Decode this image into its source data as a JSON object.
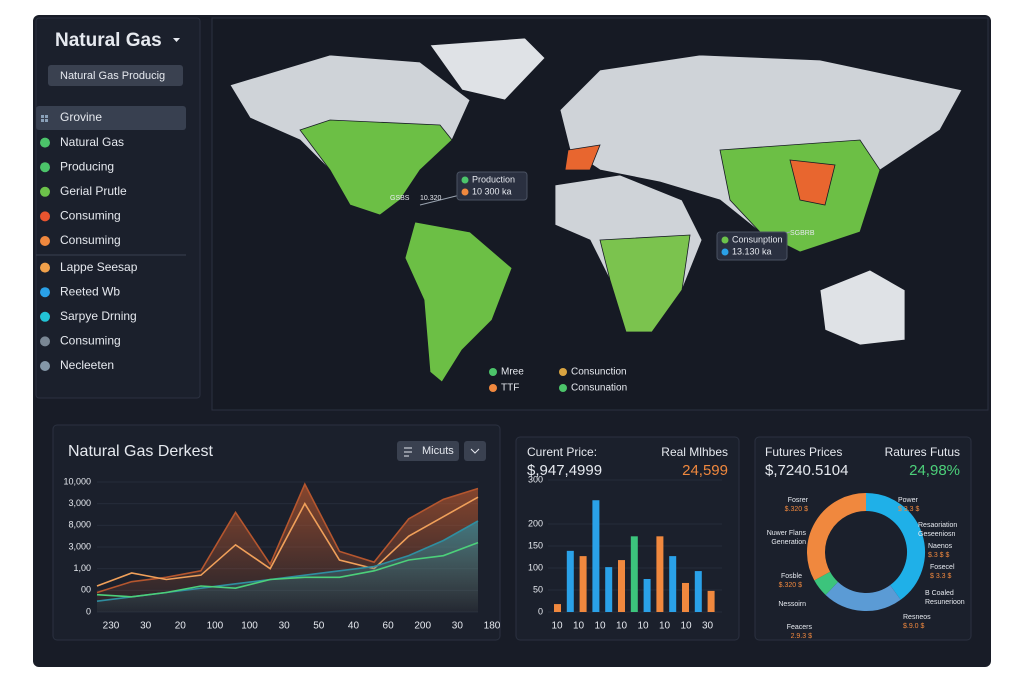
{
  "sidebar": {
    "title": "Natural Gas",
    "dropdown": "Natural Gas Producig",
    "items": [
      {
        "label": "Grovine",
        "color": "#8aa0b8"
      },
      {
        "label": "Natural Gas",
        "color": "#4cc46a"
      },
      {
        "label": "Producing",
        "color": "#4cc46a"
      },
      {
        "label": "Gerial Prutle",
        "color": "#6cc24a"
      },
      {
        "label": "Consuming",
        "color": "#e8542f"
      },
      {
        "label": "Consuming",
        "color": "#f0883e"
      },
      {
        "label": "Lappe Seesap",
        "color": "#f0a04a"
      },
      {
        "label": "Reeted Wb",
        "color": "#2aa1e8"
      },
      {
        "label": "Sarpye Drning",
        "color": "#22c3d6"
      },
      {
        "label": "Consuming",
        "color": "#7a8794"
      },
      {
        "label": "Necleeten",
        "color": "#8497a8"
      }
    ]
  },
  "map": {
    "callouts": [
      [
        {
          "text": "Production",
          "color": "#4cc46a"
        },
        {
          "text": "10 300 ka",
          "color": "#f0883e"
        }
      ],
      [
        {
          "text": "Consunption",
          "color": "#6cc24a"
        },
        {
          "text": "13.130 ka",
          "color": "#2aa1e8"
        }
      ]
    ],
    "labels": [
      "GSBS",
      "10.320",
      "SGBRB"
    ],
    "legend": [
      {
        "text": "Mree",
        "color": "#4cc46a"
      },
      {
        "text": "TTF",
        "color": "#f0883e"
      },
      {
        "text": "Consunction",
        "color": "#d9a441"
      },
      {
        "text": "Consunation",
        "color": "#4cc46a"
      }
    ]
  },
  "market": {
    "title": "Natural Gas Derkest",
    "button": "Micuts",
    "ylim": [
      0,
      6
    ],
    "yticks": [
      0,
      {
        "value": 1,
        "label": "00"
      },
      {
        "value": 2,
        "label": "1,00"
      },
      {
        "value": 3,
        "label": "3,000"
      },
      {
        "value": 4,
        "label": "8,000"
      },
      {
        "value": 5,
        "label": "3,000"
      },
      {
        "value": 6,
        "label": "10,000"
      }
    ],
    "categories": [
      "230",
      "30",
      "20",
      "100",
      "100",
      "30",
      "50",
      "40",
      "60",
      "200",
      "30",
      "180"
    ],
    "series": [
      {
        "color": "#b5562e",
        "values": [
          0.9,
          1.4,
          1.6,
          1.9,
          4.6,
          2.2,
          5.9,
          2.8,
          2.3,
          4.3,
          5.2,
          5.7
        ]
      },
      {
        "color": "#f0a05a",
        "values": [
          1.2,
          1.8,
          1.5,
          1.7,
          3.1,
          2.0,
          5.0,
          2.4,
          2.0,
          3.5,
          4.4,
          5.3
        ]
      },
      {
        "color": "#2f8ea0",
        "values": [
          0.5,
          0.7,
          0.9,
          1.1,
          1.3,
          1.5,
          1.7,
          1.9,
          2.1,
          2.6,
          3.3,
          4.2
        ]
      },
      {
        "color": "#4cd07a",
        "values": [
          0.8,
          0.7,
          0.9,
          1.2,
          1.1,
          1.5,
          1.6,
          1.6,
          1.9,
          2.4,
          2.6,
          3.2
        ]
      }
    ]
  },
  "price": {
    "label": "Curent Price:",
    "value": "$,947,4999",
    "label2": "Real Mlhbes",
    "value2": "24,599",
    "ylim": [
      0,
      300
    ],
    "yticks": [
      0,
      50,
      100,
      150,
      200,
      300
    ],
    "categories": [
      "10",
      "10",
      "10",
      "10",
      "10",
      "10",
      "10",
      "30"
    ],
    "bars": [
      {
        "value": 18,
        "color": "#f0883e"
      },
      {
        "value": 139,
        "color": "#2aa1e8"
      },
      {
        "value": 127,
        "color": "#f0883e"
      },
      {
        "value": 254,
        "color": "#2aa1e8"
      },
      {
        "value": 102,
        "color": "#2aa1e8"
      },
      {
        "value": 118,
        "color": "#f0883e"
      },
      {
        "value": 172,
        "color": "#3cc47c"
      },
      {
        "value": 75,
        "color": "#2aa1e8"
      },
      {
        "value": 172,
        "color": "#f0883e"
      },
      {
        "value": 127,
        "color": "#2aa1e8"
      },
      {
        "value": 66,
        "color": "#f0883e"
      },
      {
        "value": 93,
        "color": "#2aa1e8"
      },
      {
        "value": 48,
        "color": "#f0883e"
      }
    ]
  },
  "futures": {
    "label": "Futures Prices",
    "value": "$,7240.5104",
    "label2": "Ratures Futus",
    "value2": "24,98%",
    "segments": [
      {
        "value": 40,
        "color": "#1fb0e8"
      },
      {
        "value": 22,
        "color": "#5b9bd5"
      },
      {
        "value": 5,
        "color": "#3cc47c"
      },
      {
        "value": 33,
        "color": "#f0883e"
      }
    ],
    "annotations": [
      [
        "Fosrer",
        "$.320 $"
      ],
      [
        "Nuwer Flans",
        "Generation"
      ],
      [
        "Fosble",
        "$.320 $"
      ],
      [
        "Nessoirn"
      ],
      [
        "Feacers",
        "2.9.3 $"
      ],
      [
        "Power",
        "$ 3.3 $"
      ],
      [
        "Resaoriation",
        "Geseeniosn"
      ],
      [
        "Naenos",
        "$.3 $ $"
      ],
      [
        "Fosecel",
        "$ 3.3 $"
      ],
      [
        "B Coaled",
        "Resunerioon"
      ],
      [
        "Resneos",
        "$.9.0 $"
      ]
    ]
  }
}
